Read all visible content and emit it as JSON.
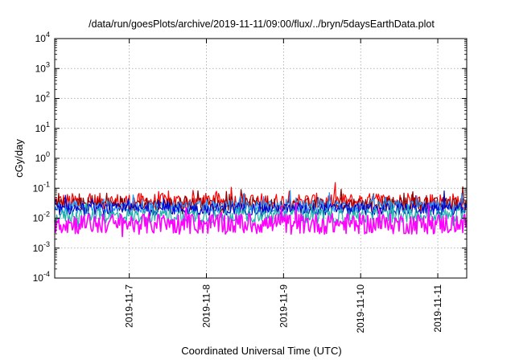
{
  "chart_data": {
    "type": "line",
    "title": "/data/run/goesPlots/archive/2019-11-11/09:00/flux/../bryn/5daysEarthData.plot",
    "xlabel": "Coordinated Universal Time (UTC)",
    "ylabel": "cGy/day",
    "y_scale": "log",
    "ylim": [
      0.0001,
      10000
    ],
    "xlim": [
      "2019-11-06T00:48",
      "2019-11-11T09:00"
    ],
    "grid": true,
    "legend": "none",
    "y_ticks": [
      {
        "value": 0.0001,
        "base": "10",
        "exp": "-4"
      },
      {
        "value": 0.001,
        "base": "10",
        "exp": "-3"
      },
      {
        "value": 0.01,
        "base": "10",
        "exp": "-2"
      },
      {
        "value": 0.1,
        "base": "10",
        "exp": "-1"
      },
      {
        "value": 1,
        "base": "10",
        "exp": "0"
      },
      {
        "value": 10,
        "base": "10",
        "exp": "1"
      },
      {
        "value": 100,
        "base": "10",
        "exp": "2"
      },
      {
        "value": 1000,
        "base": "10",
        "exp": "3"
      },
      {
        "value": 10000,
        "base": "10",
        "exp": "4"
      }
    ],
    "x_ticks": [
      "2019-11-7",
      "2019-11-8",
      "2019-11-9",
      "2019-11-10",
      "2019-11-11"
    ],
    "series": [
      {
        "color": "#ff0000",
        "base": 0.036,
        "amplitude": 0.28
      },
      {
        "color": "#8b0000",
        "base": 0.03,
        "amplitude": 0.22
      },
      {
        "color": "#1e90ff",
        "base": 0.024,
        "amplitude": 0.22
      },
      {
        "color": "#0000cd",
        "base": 0.02,
        "amplitude": 0.2
      },
      {
        "color": "#20b2aa",
        "base": 0.012,
        "amplitude": 0.25
      },
      {
        "color": "#ff00ff",
        "base": 0.0065,
        "amplitude": 0.35
      }
    ]
  }
}
